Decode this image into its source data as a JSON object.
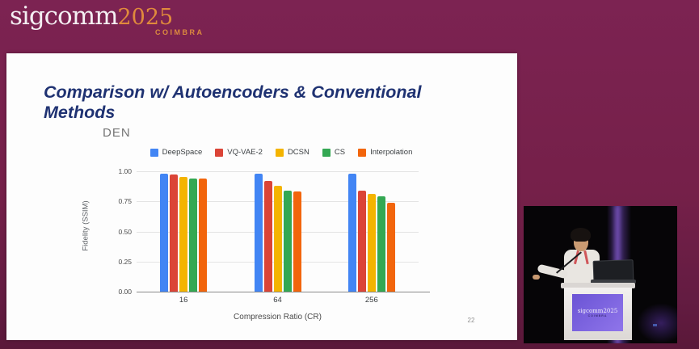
{
  "brand": {
    "wordmark": "sigcomm",
    "year": "2025",
    "city": "COIMBRA"
  },
  "slide": {
    "title": "Comparison w/ Autoencoders & Conventional Methods",
    "page_number": "22"
  },
  "chart_data": {
    "type": "bar",
    "title": "DEN",
    "categories": [
      "16",
      "64",
      "256"
    ],
    "series": [
      {
        "name": "DeepSpace",
        "color": "#4285F4",
        "values": [
          0.98,
          0.98,
          0.98
        ]
      },
      {
        "name": "VQ-VAE-2",
        "color": "#DB4437",
        "values": [
          0.97,
          0.92,
          0.84
        ]
      },
      {
        "name": "DCSN",
        "color": "#F4B400",
        "values": [
          0.95,
          0.88,
          0.81
        ]
      },
      {
        "name": "CS",
        "color": "#34A853",
        "values": [
          0.94,
          0.84,
          0.79
        ]
      },
      {
        "name": "Interpolation",
        "color": "#F2650C",
        "values": [
          0.94,
          0.83,
          0.74
        ]
      }
    ],
    "xlabel": "Compression Ratio (CR)",
    "ylabel": "Fidelity (SSIM)",
    "ylim": [
      0,
      1.0
    ],
    "ytick_labels": [
      "0.00",
      "0.25",
      "0.50",
      "0.75",
      "1.00"
    ],
    "grid": true,
    "legend_position": "top"
  },
  "video": {
    "podium_sign": {
      "wordmark": "sigcomm",
      "year": "2025",
      "city": "COIMBRA"
    }
  },
  "colors": {
    "background_maroon": "#752049",
    "slide_background": "#FDFDFD",
    "slide_title": "#1F3272",
    "brand_orange": "#E08A3C",
    "chart_title_gray": "#757575",
    "podium_purple": "#7B60DB"
  }
}
